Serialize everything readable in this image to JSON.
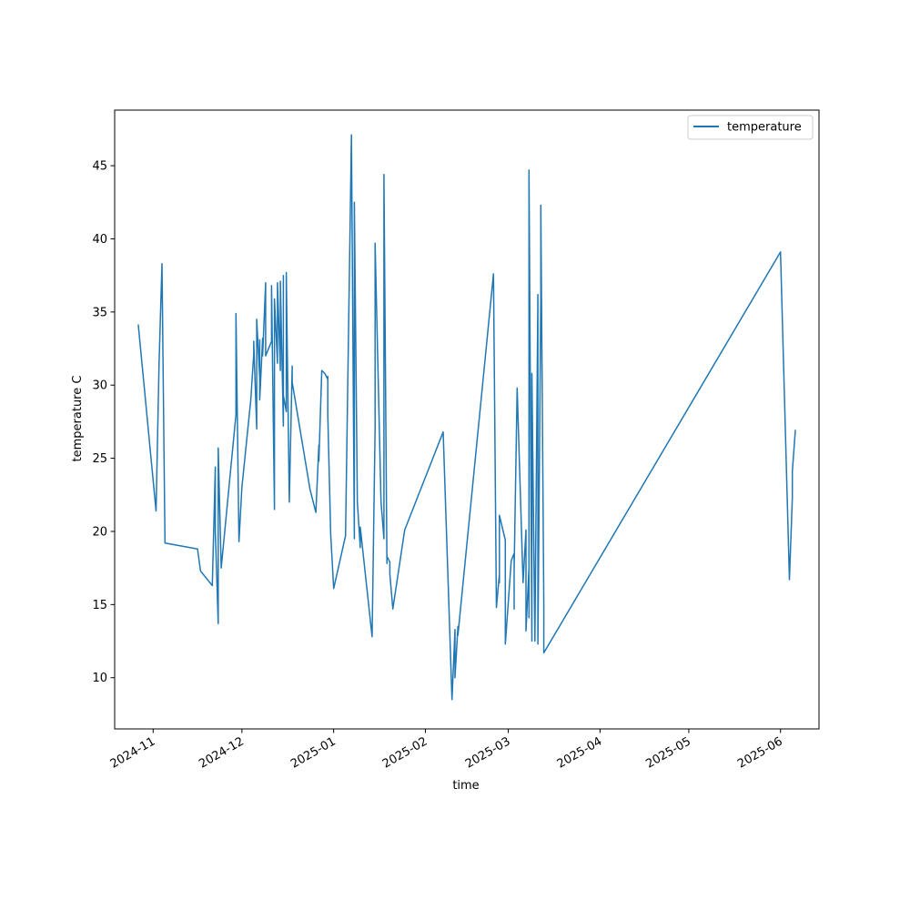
{
  "chart_data": {
    "type": "line",
    "xlabel": "time",
    "ylabel": "temperature C",
    "x_axis_type": "date",
    "xlim": [
      "2024-10-19",
      "2025-06-14"
    ],
    "ylim": [
      6.5,
      48.8
    ],
    "grid": false,
    "legend": {
      "position": "top-right",
      "entries": [
        "temperature"
      ]
    },
    "x_ticks": [
      "2024-11",
      "2024-12",
      "2025-01",
      "2025-02",
      "2025-03",
      "2025-04",
      "2025-05",
      "2025-06"
    ],
    "y_ticks": [
      10,
      15,
      20,
      25,
      30,
      35,
      40,
      45
    ],
    "series": [
      {
        "name": "temperature",
        "color": "#1f77b4",
        "points": [
          [
            "2024-10-27",
            34.1
          ],
          [
            "2024-11-02",
            21.4
          ],
          [
            "2024-11-03",
            31.5
          ],
          [
            "2024-11-04",
            38.3
          ],
          [
            "2024-11-05",
            19.2
          ],
          [
            "2024-11-16",
            18.8
          ],
          [
            "2024-11-17",
            17.3
          ],
          [
            "2024-11-21",
            16.3
          ],
          [
            "2024-11-22",
            24.4
          ],
          [
            "2024-11-22",
            20.0
          ],
          [
            "2024-11-23",
            13.7
          ],
          [
            "2024-11-23",
            25.7
          ],
          [
            "2024-11-24",
            17.5
          ],
          [
            "2024-11-29",
            28.0
          ],
          [
            "2024-11-29",
            34.9
          ],
          [
            "2024-11-30",
            19.3
          ],
          [
            "2024-12-01",
            23.0
          ],
          [
            "2024-12-04",
            29.0
          ],
          [
            "2024-12-05",
            32.1
          ],
          [
            "2024-12-05",
            33.0
          ],
          [
            "2024-12-06",
            27.0
          ],
          [
            "2024-12-06",
            34.5
          ],
          [
            "2024-12-07",
            30.5
          ],
          [
            "2024-12-07",
            33.1
          ],
          [
            "2024-12-07",
            29.0
          ],
          [
            "2024-12-08",
            33.2
          ],
          [
            "2024-12-08",
            32.0
          ],
          [
            "2024-12-09",
            37.0
          ],
          [
            "2024-12-09",
            32.0
          ],
          [
            "2024-12-11",
            33.0
          ],
          [
            "2024-12-11",
            36.8
          ],
          [
            "2024-12-12",
            21.5
          ],
          [
            "2024-12-12",
            35.9
          ],
          [
            "2024-12-13",
            31.5
          ],
          [
            "2024-12-13",
            37.0
          ],
          [
            "2024-12-14",
            31.0
          ],
          [
            "2024-12-14",
            37.1
          ],
          [
            "2024-12-15",
            27.2
          ],
          [
            "2024-12-15",
            37.5
          ],
          [
            "2024-12-15",
            29.3
          ],
          [
            "2024-12-16",
            28.2
          ],
          [
            "2024-12-16",
            37.7
          ],
          [
            "2024-12-17",
            22.0
          ],
          [
            "2024-12-18",
            31.3
          ],
          [
            "2024-12-18",
            30.2
          ],
          [
            "2024-12-24",
            22.9
          ],
          [
            "2024-12-26",
            21.3
          ],
          [
            "2024-12-27",
            25.9
          ],
          [
            "2024-12-27",
            24.8
          ],
          [
            "2024-12-28",
            31.0
          ],
          [
            "2024-12-29",
            30.8
          ],
          [
            "2024-12-30",
            30.4
          ],
          [
            "2024-12-30",
            30.6
          ],
          [
            "2024-12-30",
            28.0
          ],
          [
            "2024-12-31",
            19.8
          ],
          [
            "2025-01-01",
            16.1
          ],
          [
            "2025-01-05",
            19.7
          ],
          [
            "2025-01-07",
            47.1
          ],
          [
            "2025-01-08",
            19.5
          ],
          [
            "2025-01-08",
            42.5
          ],
          [
            "2025-01-09",
            22.0
          ],
          [
            "2025-01-10",
            18.9
          ],
          [
            "2025-01-10",
            20.3
          ],
          [
            "2025-01-14",
            12.8
          ],
          [
            "2025-01-15",
            27.0
          ],
          [
            "2025-01-15",
            39.7
          ],
          [
            "2025-01-17",
            22.0
          ],
          [
            "2025-01-18",
            19.5
          ],
          [
            "2025-01-18",
            44.4
          ],
          [
            "2025-01-19",
            17.8
          ],
          [
            "2025-01-19",
            18.3
          ],
          [
            "2025-01-20",
            17.9
          ],
          [
            "2025-01-20",
            17.1
          ],
          [
            "2025-01-21",
            14.7
          ],
          [
            "2025-01-25",
            20.1
          ],
          [
            "2025-02-07",
            26.8
          ],
          [
            "2025-02-10",
            8.5
          ],
          [
            "2025-02-11",
            13.3
          ],
          [
            "2025-02-11",
            10.0
          ],
          [
            "2025-02-12",
            13.5
          ],
          [
            "2025-02-12",
            12.9
          ],
          [
            "2025-02-24",
            37.6
          ],
          [
            "2025-02-25",
            14.8
          ],
          [
            "2025-02-26",
            17.1
          ],
          [
            "2025-02-26",
            16.5
          ],
          [
            "2025-02-26",
            21.1
          ],
          [
            "2025-02-28",
            19.4
          ],
          [
            "2025-02-28",
            12.3
          ],
          [
            "2025-03-02",
            18.0
          ],
          [
            "2025-03-03",
            18.5
          ],
          [
            "2025-03-03",
            14.7
          ],
          [
            "2025-03-03",
            17.4
          ],
          [
            "2025-03-04",
            29.8
          ],
          [
            "2025-03-06",
            16.5
          ],
          [
            "2025-03-07",
            20.1
          ],
          [
            "2025-03-07",
            13.2
          ],
          [
            "2025-03-08",
            17.5
          ],
          [
            "2025-03-08",
            14.1
          ],
          [
            "2025-03-08",
            44.7
          ],
          [
            "2025-03-09",
            12.5
          ],
          [
            "2025-03-09",
            30.8
          ],
          [
            "2025-03-10",
            12.5
          ],
          [
            "2025-03-11",
            36.2
          ],
          [
            "2025-03-11",
            12.3
          ],
          [
            "2025-03-12",
            36.0
          ],
          [
            "2025-03-12",
            42.3
          ],
          [
            "2025-03-13",
            15.0
          ],
          [
            "2025-03-13",
            11.7
          ],
          [
            "2025-06-01",
            39.1
          ],
          [
            "2025-06-04",
            16.7
          ],
          [
            "2025-06-05",
            22.3
          ],
          [
            "2025-06-05",
            24.1
          ],
          [
            "2025-06-06",
            26.9
          ]
        ]
      }
    ]
  }
}
